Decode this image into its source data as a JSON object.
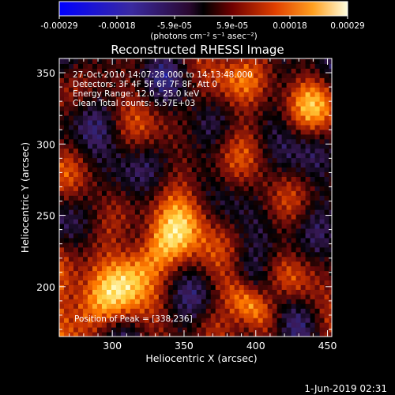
{
  "colorbar": {
    "ticks": [
      "-0.00029",
      "-0.00018",
      "-5.9e-05",
      "5.9e-05",
      "0.00018",
      "0.00029"
    ],
    "units_line": "(photons cm⁻² s⁻¹ asec⁻²)"
  },
  "chart_data": {
    "type": "heatmap",
    "title": "Reconstructed RHESSI Image",
    "xlabel": "Heliocentric X (arcsec)",
    "ylabel": "Heliocentric Y (arcsec)",
    "xlim": [
      263,
      453
    ],
    "ylim": [
      165,
      360
    ],
    "xticks": [
      300,
      350,
      400,
      450
    ],
    "yticks": [
      200,
      250,
      300,
      350
    ],
    "colormap": [
      "#0000ff",
      "#2a2a8a",
      "#3a1a5a",
      "#000000",
      "#6a0a0a",
      "#c43000",
      "#ff7a00",
      "#ffd040",
      "#ffffd0"
    ],
    "annotations": [
      "27-Oct-2010 14:07:28.000 to 14:13:48.000",
      "Detectors: 3F 4F 5F 6F 7F 8F, Att 0",
      "Energy Range: 12.0 - 25.0 keV",
      "Clean     Total counts: 5.57E+03"
    ],
    "peak_label": "Position of Peak = [338,236]",
    "peak": [
      338,
      236
    ],
    "value_range": [
      -0.00029,
      0.00029
    ],
    "image_note": "Bright emission concentrated along a diagonal ridge from (300,190) to (370,260), with additional bright streaks running lower-left to upper-right across the field."
  },
  "footer": {
    "timestamp": "1-Jun-2019 02:31"
  }
}
